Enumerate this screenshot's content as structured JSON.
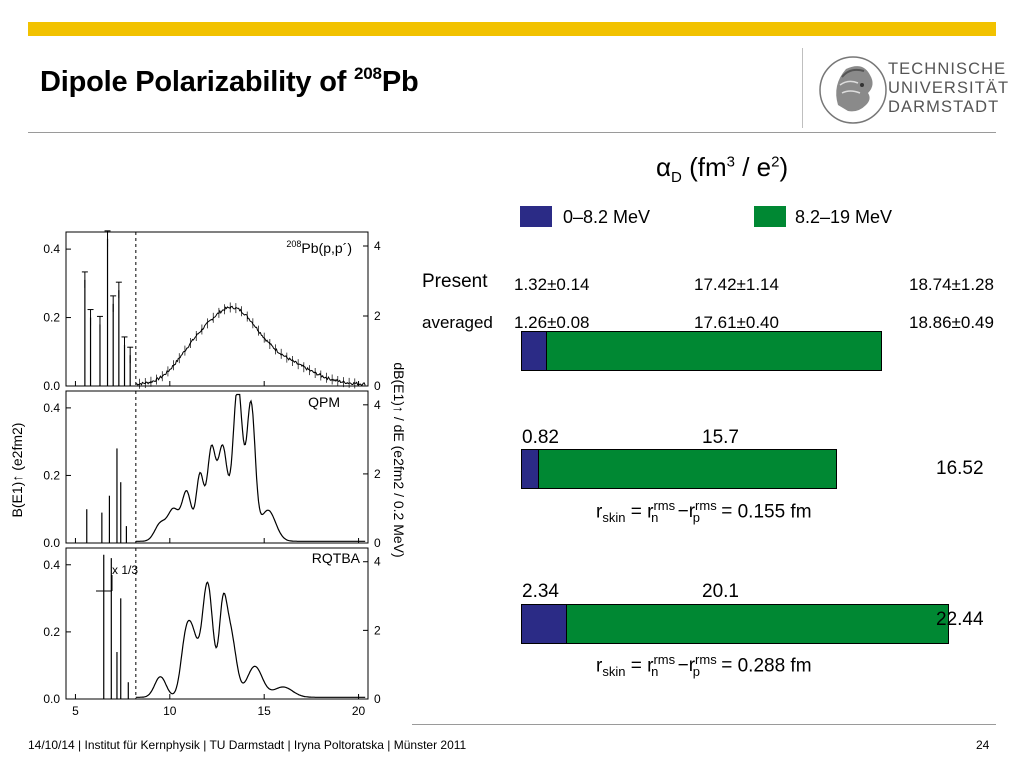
{
  "slide": {
    "title_main": "Dipole Polarizability of ",
    "title_sup": "208",
    "title_elem": "Pb",
    "logo_lines": [
      "TECHNISCHE",
      "UNIVERSITÄT",
      "DARMSTADT"
    ],
    "footer": "14/10/14 | Institut für Kernphysik | TU Darmstadt | Iryna Poltoratska | Münster 2011",
    "page_number": "24",
    "accent_color": "#f2c200"
  },
  "summary": {
    "alpha_symbol": "α",
    "alpha_sub": "D",
    "unit_open": "(fm",
    "unit_sup1": "3",
    "unit_mid": " / e",
    "unit_sup2": "2",
    "unit_close": ")",
    "legend": [
      {
        "label": "0–8.2 MeV",
        "color": "#2b2b86"
      },
      {
        "label": "8.2–19 MeV",
        "color": "#008833"
      }
    ],
    "present_label": "Present",
    "present_values": [
      "1.32±0.14",
      "17.42±1.14",
      "18.74±1.28"
    ],
    "averaged_label": "averaged",
    "averaged_values": [
      "1.26±0.08",
      "17.61±0.40",
      "18.86±0.49"
    ],
    "qpm_low": "0.82",
    "qpm_high": "15.7",
    "qpm_total": "16.52",
    "qpm_skin": "0.155 fm",
    "rqtba_low": "2.34",
    "rqtba_high": "20.1",
    "rqtba_total": "22.44",
    "rqtba_skin": "0.288 fm",
    "formula": {
      "r": "r",
      "skin": "skin",
      "eq": " = r",
      "n": "n",
      "rms": "rms",
      "minus": " −r",
      "p": "p",
      "eq2": " = "
    }
  },
  "chart_data": [
    {
      "type": "bar",
      "title": "αD (fm3 / e2)",
      "categories": [
        "Present/averaged",
        "QPM",
        "RQTBA"
      ],
      "series": [
        {
          "name": "0–8.2 MeV",
          "values": [
            1.26,
            0.82,
            2.34
          ]
        },
        {
          "name": "8.2–19 MeV",
          "values": [
            17.61,
            15.7,
            20.1
          ]
        }
      ],
      "totals": [
        18.86,
        16.52,
        22.44
      ],
      "orientation": "horizontal",
      "stacked": true
    },
    {
      "type": "line",
      "panels": [
        {
          "name": "208Pb(p,p´)",
          "label_mass": "208",
          "label_text": "Pb(p,p´)"
        },
        {
          "name": "QPM",
          "label_text": "QPM"
        },
        {
          "name": "RQTBA",
          "label_text": "RQTBA",
          "annotation": "x 1/3"
        }
      ],
      "xlabel": "",
      "xticks": [
        "5",
        "10",
        "15",
        "20"
      ],
      "xlim": [
        4.5,
        20.5
      ],
      "left_yticks": [
        "0.0",
        "0.2",
        "0.4"
      ],
      "right_yticks": [
        "0",
        "2",
        "4"
      ],
      "ylabel_left": "B(E1)↑ (e2fm2)",
      "ylabel_right": "dB(E1)↑ / dE (e2fm2 / 0.2 MeV)",
      "threshold_x": 8.2
    }
  ]
}
